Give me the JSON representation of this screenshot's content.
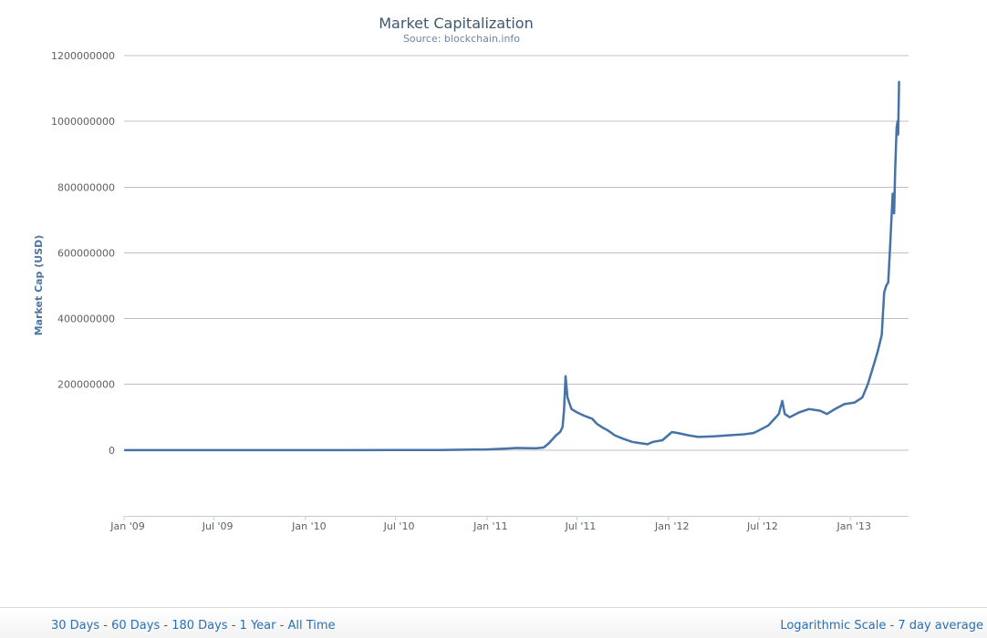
{
  "chart_data": {
    "type": "line",
    "title": "Market Capitalization",
    "subtitle": "Source: blockchain.info",
    "ylabel": "Market Cap (USD)",
    "xlabel": "",
    "ylim": [
      -200000000,
      1200000000
    ],
    "xlim": [
      "2009-01-01",
      "2013-04-28"
    ],
    "yticks": [
      {
        "value": 0,
        "label": "0"
      },
      {
        "value": 200000000,
        "label": "200000000"
      },
      {
        "value": 400000000,
        "label": "400000000"
      },
      {
        "value": 600000000,
        "label": "600000000"
      },
      {
        "value": 800000000,
        "label": "800000000"
      },
      {
        "value": 1000000000,
        "label": "1000000000"
      },
      {
        "value": 1200000000,
        "label": "1200000000"
      }
    ],
    "xticks": [
      {
        "date": "2009-01-01",
        "label": "Jan '09"
      },
      {
        "date": "2009-07-01",
        "label": "Jul '09"
      },
      {
        "date": "2010-01-01",
        "label": "Jan '10"
      },
      {
        "date": "2010-07-01",
        "label": "Jul '10"
      },
      {
        "date": "2011-01-01",
        "label": "Jan '11"
      },
      {
        "date": "2011-07-01",
        "label": "Jul '11"
      },
      {
        "date": "2012-01-01",
        "label": "Jan '12"
      },
      {
        "date": "2012-07-01",
        "label": "Jul '12"
      },
      {
        "date": "2013-01-01",
        "label": "Jan '13"
      }
    ],
    "grid": true,
    "legend": "none",
    "series": [
      {
        "color": "#4572a7",
        "points": [
          [
            "2009-01-03",
            0
          ],
          [
            "2009-07-01",
            0
          ],
          [
            "2010-01-01",
            0
          ],
          [
            "2010-07-01",
            100000
          ],
          [
            "2010-10-01",
            500000
          ],
          [
            "2011-01-01",
            2000000
          ],
          [
            "2011-02-10",
            5000000
          ],
          [
            "2011-03-01",
            6500000
          ],
          [
            "2011-04-10",
            5500000
          ],
          [
            "2011-04-25",
            8000000
          ],
          [
            "2011-05-05",
            20000000
          ],
          [
            "2011-05-20",
            45000000
          ],
          [
            "2011-05-28",
            55000000
          ],
          [
            "2011-06-02",
            70000000
          ],
          [
            "2011-06-05",
            120000000
          ],
          [
            "2011-06-08",
            225000000
          ],
          [
            "2011-06-12",
            160000000
          ],
          [
            "2011-06-20",
            125000000
          ],
          [
            "2011-07-01",
            115000000
          ],
          [
            "2011-07-15",
            105000000
          ],
          [
            "2011-08-01",
            95000000
          ],
          [
            "2011-08-10",
            80000000
          ],
          [
            "2011-08-20",
            70000000
          ],
          [
            "2011-09-01",
            60000000
          ],
          [
            "2011-09-15",
            45000000
          ],
          [
            "2011-10-01",
            35000000
          ],
          [
            "2011-10-20",
            25000000
          ],
          [
            "2011-11-01",
            22000000
          ],
          [
            "2011-11-20",
            18000000
          ],
          [
            "2011-12-01",
            25000000
          ],
          [
            "2011-12-20",
            30000000
          ],
          [
            "2012-01-08",
            55000000
          ],
          [
            "2012-01-20",
            52000000
          ],
          [
            "2012-02-10",
            45000000
          ],
          [
            "2012-03-01",
            40000000
          ],
          [
            "2012-04-01",
            42000000
          ],
          [
            "2012-05-01",
            45000000
          ],
          [
            "2012-06-01",
            48000000
          ],
          [
            "2012-06-20",
            52000000
          ],
          [
            "2012-07-01",
            60000000
          ],
          [
            "2012-07-20",
            75000000
          ],
          [
            "2012-08-01",
            95000000
          ],
          [
            "2012-08-10",
            110000000
          ],
          [
            "2012-08-17",
            150000000
          ],
          [
            "2012-08-22",
            110000000
          ],
          [
            "2012-09-01",
            100000000
          ],
          [
            "2012-09-20",
            115000000
          ],
          [
            "2012-10-10",
            125000000
          ],
          [
            "2012-11-01",
            120000000
          ],
          [
            "2012-11-15",
            110000000
          ],
          [
            "2012-12-01",
            125000000
          ],
          [
            "2012-12-20",
            140000000
          ],
          [
            "2013-01-10",
            145000000
          ],
          [
            "2013-01-25",
            160000000
          ],
          [
            "2013-02-05",
            200000000
          ],
          [
            "2013-02-15",
            250000000
          ],
          [
            "2013-02-25",
            300000000
          ],
          [
            "2013-03-05",
            350000000
          ],
          [
            "2013-03-10",
            480000000
          ],
          [
            "2013-03-14",
            500000000
          ],
          [
            "2013-03-18",
            510000000
          ],
          [
            "2013-03-22",
            620000000
          ],
          [
            "2013-03-27",
            780000000
          ],
          [
            "2013-03-30",
            720000000
          ],
          [
            "2013-04-01",
            850000000
          ],
          [
            "2013-04-04",
            980000000
          ],
          [
            "2013-04-06",
            1000000000
          ],
          [
            "2013-04-07",
            960000000
          ],
          [
            "2013-04-09",
            1120000000
          ]
        ]
      }
    ]
  },
  "footer": {
    "ranges": [
      "30 Days",
      "60 Days",
      "180 Days",
      "1 Year",
      "All Time"
    ],
    "separator": " - ",
    "options": [
      "Logarithmic Scale",
      "7 day average"
    ]
  }
}
